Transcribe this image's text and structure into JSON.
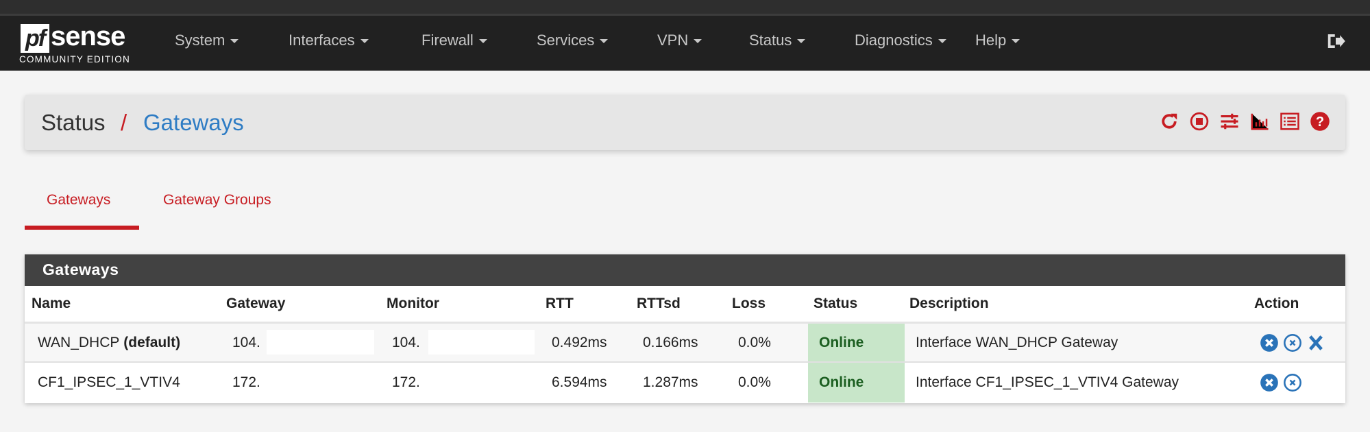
{
  "brand": {
    "logo_text": "pfsense",
    "edition": "COMMUNITY EDITION"
  },
  "nav": {
    "items": [
      "System",
      "Interfaces",
      "Firewall",
      "Services",
      "VPN",
      "Status",
      "Diagnostics",
      "Help"
    ],
    "logout_icon": "sign-out-icon"
  },
  "breadcrumb": {
    "parent": "Status",
    "separator": "/",
    "current": "Gateways",
    "icons": [
      "refresh-icon",
      "stop-circle-icon",
      "sliders-icon",
      "bar-chart-icon",
      "list-alt-icon",
      "question-circle-icon"
    ]
  },
  "tabs": [
    {
      "label": "Gateways",
      "active": true
    },
    {
      "label": "Gateway Groups",
      "active": false
    }
  ],
  "panel": {
    "title": "Gateways",
    "columns": [
      "Name",
      "Gateway",
      "Monitor",
      "RTT",
      "RTTsd",
      "Loss",
      "Status",
      "Description",
      "Action"
    ],
    "rows": [
      {
        "name": "WAN_DHCP",
        "name_suffix": "(default)",
        "gateway": "104.",
        "monitor": "104.",
        "rtt": "0.492ms",
        "rttsd": "0.166ms",
        "loss": "0.0%",
        "status": "Online",
        "description": "Interface WAN_DHCP Gateway",
        "actions": [
          "remove-circle-icon",
          "remove-circle-outline-icon",
          "remove-icon"
        ]
      },
      {
        "name": "CF1_IPSEC_1_VTIV4",
        "gateway": "172.",
        "monitor": "172.",
        "rtt": "6.594ms",
        "rttsd": "1.287ms",
        "loss": "0.0%",
        "status": "Online",
        "description": "Interface CF1_IPSEC_1_VTIV4 Gateway",
        "actions": [
          "remove-circle-icon",
          "remove-circle-outline-icon"
        ]
      }
    ]
  },
  "colors": {
    "navbar": "#212121",
    "accent_red": "#c71c22",
    "link_blue": "#2e7cc4",
    "online_bg": "#c8e6c9",
    "online_text": "#1b5e20",
    "action_blue": "#2a73b8"
  }
}
